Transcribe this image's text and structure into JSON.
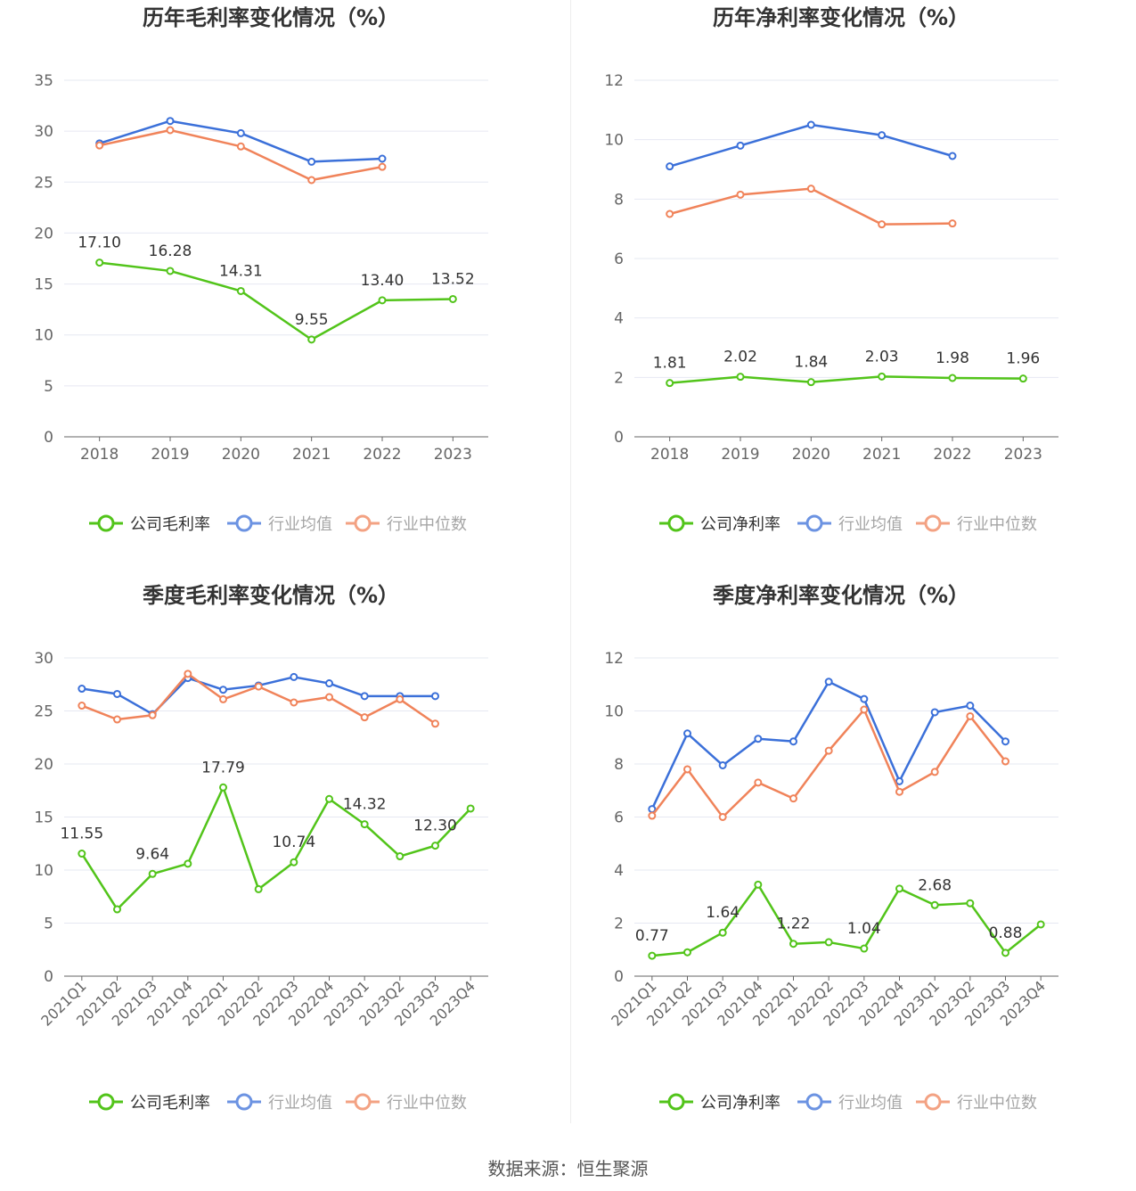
{
  "source": "数据来源：恒生聚源",
  "colors": {
    "company": "#52c41a",
    "avg": "#3b70d9",
    "median": "#f0835a"
  },
  "legend_labels": {
    "avg": "行业均值",
    "median": "行业中位数"
  },
  "chart_data": [
    {
      "type": "line",
      "title": "历年毛利率变化情况（%）",
      "legend_company": "公司毛利率",
      "categories": [
        "2018",
        "2019",
        "2020",
        "2021",
        "2022",
        "2023"
      ],
      "ylim": [
        0,
        35
      ],
      "yticks": [
        0,
        5,
        10,
        15,
        20,
        25,
        30,
        35
      ],
      "grid": true,
      "legend_position": "bottom",
      "series": [
        {
          "name": "公司毛利率",
          "values": [
            17.1,
            16.28,
            14.31,
            9.55,
            13.4,
            13.52
          ],
          "labels": [
            "17.10",
            "16.28",
            "14.31",
            "9.55",
            "13.40",
            "13.52"
          ]
        },
        {
          "name": "行业均值",
          "values": [
            28.8,
            31.0,
            29.8,
            27.0,
            27.3,
            null
          ]
        },
        {
          "name": "行业中位数",
          "values": [
            28.6,
            30.1,
            28.5,
            25.2,
            26.5,
            null
          ]
        }
      ]
    },
    {
      "type": "line",
      "title": "历年净利率变化情况（%）",
      "legend_company": "公司净利率",
      "categories": [
        "2018",
        "2019",
        "2020",
        "2021",
        "2022",
        "2023"
      ],
      "ylim": [
        0,
        12
      ],
      "yticks": [
        0,
        2,
        4,
        6,
        8,
        10,
        12
      ],
      "grid": true,
      "legend_position": "bottom",
      "series": [
        {
          "name": "公司净利率",
          "values": [
            1.81,
            2.02,
            1.84,
            2.03,
            1.98,
            1.96
          ],
          "labels": [
            "1.81",
            "2.02",
            "1.84",
            "2.03",
            "1.98",
            "1.96"
          ]
        },
        {
          "name": "行业均值",
          "values": [
            9.1,
            9.8,
            10.5,
            10.15,
            9.45,
            null
          ]
        },
        {
          "name": "行业中位数",
          "values": [
            7.5,
            8.15,
            8.35,
            7.15,
            7.18,
            null
          ]
        }
      ]
    },
    {
      "type": "line",
      "title": "季度毛利率变化情况（%）",
      "legend_company": "公司毛利率",
      "categories": [
        "2021Q1",
        "2021Q2",
        "2021Q3",
        "2021Q4",
        "2022Q1",
        "2022Q2",
        "2022Q3",
        "2022Q4",
        "2023Q1",
        "2023Q2",
        "2023Q3",
        "2023Q4"
      ],
      "ylim": [
        0,
        30
      ],
      "yticks": [
        0,
        5,
        10,
        15,
        20,
        25,
        30
      ],
      "grid": true,
      "legend_position": "bottom",
      "rotate_x_labels": true,
      "series": [
        {
          "name": "公司毛利率",
          "values": [
            11.55,
            6.3,
            9.64,
            10.6,
            17.79,
            8.2,
            10.74,
            16.7,
            14.32,
            11.3,
            12.3,
            15.8
          ],
          "labels": [
            "11.55",
            "",
            "9.64",
            "",
            "17.79",
            "",
            "10.74",
            "",
            "14.32",
            "",
            "12.30",
            ""
          ]
        },
        {
          "name": "行业均值",
          "values": [
            27.1,
            26.6,
            24.7,
            28.1,
            27.0,
            27.4,
            28.2,
            27.6,
            26.4,
            26.4,
            26.4,
            null
          ]
        },
        {
          "name": "行业中位数",
          "values": [
            25.5,
            24.2,
            24.6,
            28.5,
            26.1,
            27.3,
            25.8,
            26.3,
            24.4,
            26.1,
            23.8,
            null
          ]
        }
      ]
    },
    {
      "type": "line",
      "title": "季度净利率变化情况（%）",
      "legend_company": "公司净利率",
      "categories": [
        "2021Q1",
        "2021Q2",
        "2021Q3",
        "2021Q4",
        "2022Q1",
        "2022Q2",
        "2022Q3",
        "2022Q4",
        "2023Q1",
        "2023Q2",
        "2023Q3",
        "2023Q4"
      ],
      "ylim": [
        0,
        12
      ],
      "yticks": [
        0,
        2,
        4,
        6,
        8,
        10,
        12
      ],
      "grid": true,
      "legend_position": "bottom",
      "rotate_x_labels": true,
      "series": [
        {
          "name": "公司净利率",
          "values": [
            0.77,
            0.9,
            1.64,
            3.45,
            1.22,
            1.28,
            1.04,
            3.3,
            2.68,
            2.75,
            0.88,
            1.95
          ],
          "labels": [
            "0.77",
            "",
            "1.64",
            "",
            "1.22",
            "",
            "1.04",
            "",
            "2.68",
            "",
            "0.88",
            ""
          ]
        },
        {
          "name": "行业均值",
          "values": [
            6.3,
            9.15,
            7.95,
            8.95,
            8.85,
            11.1,
            10.45,
            7.35,
            9.95,
            10.2,
            8.85,
            null
          ]
        },
        {
          "name": "行业中位数",
          "values": [
            6.05,
            7.8,
            6.0,
            7.3,
            6.7,
            8.5,
            10.05,
            6.95,
            7.7,
            9.8,
            8.1,
            null
          ]
        }
      ]
    }
  ]
}
